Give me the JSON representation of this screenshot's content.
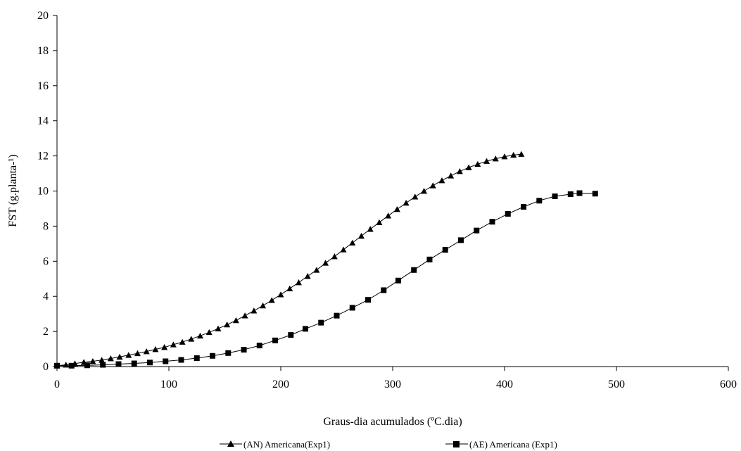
{
  "chart_data": {
    "type": "line",
    "title": "",
    "xlabel": "Graus-dia acumulados (ºC.dia)",
    "ylabel": "FST (g.planta-¹)",
    "xlim": [
      0,
      600
    ],
    "ylim": [
      0,
      20
    ],
    "xticks": [
      "0",
      "100",
      "200",
      "300",
      "400",
      "500",
      "600"
    ],
    "yticks": [
      "0",
      "2",
      "4",
      "6",
      "8",
      "10",
      "12",
      "14",
      "16",
      "18",
      "20"
    ],
    "grid": false,
    "legend_position": "bottom",
    "series": [
      {
        "name": "(AN) Americana(Exp1)",
        "marker": "triangle",
        "color": "#000000",
        "points": [
          [
            0,
            0.05
          ],
          [
            8,
            0.1
          ],
          [
            16,
            0.17
          ],
          [
            24,
            0.25
          ],
          [
            32,
            0.3
          ],
          [
            40,
            0.37
          ],
          [
            48,
            0.46
          ],
          [
            56,
            0.55
          ],
          [
            64,
            0.65
          ],
          [
            72,
            0.75
          ],
          [
            80,
            0.86
          ],
          [
            88,
            0.98
          ],
          [
            96,
            1.1
          ],
          [
            104,
            1.25
          ],
          [
            112,
            1.4
          ],
          [
            120,
            1.57
          ],
          [
            128,
            1.75
          ],
          [
            136,
            1.95
          ],
          [
            144,
            2.16
          ],
          [
            152,
            2.39
          ],
          [
            160,
            2.63
          ],
          [
            168,
            2.9
          ],
          [
            176,
            3.18
          ],
          [
            184,
            3.47
          ],
          [
            192,
            3.78
          ],
          [
            200,
            4.1
          ],
          [
            208,
            4.44
          ],
          [
            216,
            4.79
          ],
          [
            224,
            5.15
          ],
          [
            232,
            5.5
          ],
          [
            240,
            5.9
          ],
          [
            248,
            6.27
          ],
          [
            256,
            6.66
          ],
          [
            264,
            7.05
          ],
          [
            272,
            7.44
          ],
          [
            280,
            7.83
          ],
          [
            288,
            8.21
          ],
          [
            296,
            8.59
          ],
          [
            304,
            8.96
          ],
          [
            312,
            9.32
          ],
          [
            320,
            9.67
          ],
          [
            328,
            10.0
          ],
          [
            336,
            10.31
          ],
          [
            344,
            10.6
          ],
          [
            352,
            10.87
          ],
          [
            360,
            11.12
          ],
          [
            368,
            11.34
          ],
          [
            376,
            11.53
          ],
          [
            384,
            11.7
          ],
          [
            392,
            11.84
          ],
          [
            400,
            11.96
          ],
          [
            408,
            12.05
          ],
          [
            415,
            12.1
          ]
        ]
      },
      {
        "name": "(AE) Americana (Exp1)",
        "marker": "square",
        "color": "#000000",
        "points": [
          [
            0,
            0.05
          ],
          [
            13,
            0.05
          ],
          [
            27,
            0.07
          ],
          [
            41,
            0.1
          ],
          [
            55,
            0.14
          ],
          [
            69,
            0.18
          ],
          [
            83,
            0.23
          ],
          [
            97,
            0.3
          ],
          [
            111,
            0.38
          ],
          [
            125,
            0.48
          ],
          [
            139,
            0.61
          ],
          [
            153,
            0.77
          ],
          [
            167,
            0.96
          ],
          [
            181,
            1.2
          ],
          [
            195,
            1.49
          ],
          [
            209,
            1.8
          ],
          [
            222,
            2.15
          ],
          [
            236,
            2.5
          ],
          [
            250,
            2.9
          ],
          [
            264,
            3.35
          ],
          [
            278,
            3.8
          ],
          [
            292,
            4.35
          ],
          [
            305,
            4.9
          ],
          [
            319,
            5.5
          ],
          [
            333,
            6.1
          ],
          [
            347,
            6.65
          ],
          [
            361,
            7.2
          ],
          [
            375,
            7.75
          ],
          [
            389,
            8.25
          ],
          [
            403,
            8.7
          ],
          [
            417,
            9.1
          ],
          [
            431,
            9.45
          ],
          [
            445,
            9.7
          ],
          [
            459,
            9.82
          ],
          [
            467,
            9.88
          ],
          [
            481,
            9.85
          ]
        ]
      }
    ]
  }
}
